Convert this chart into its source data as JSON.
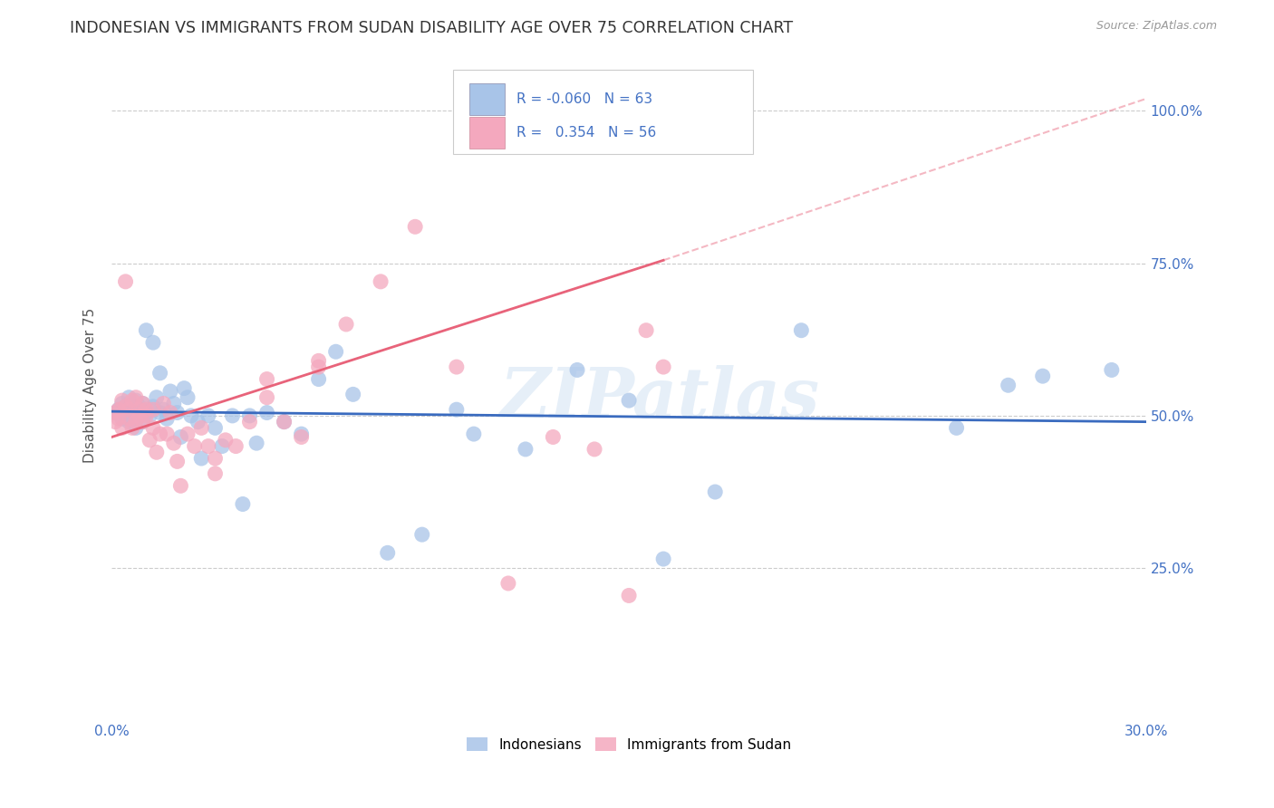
{
  "title": "INDONESIAN VS IMMIGRANTS FROM SUDAN DISABILITY AGE OVER 75 CORRELATION CHART",
  "source": "Source: ZipAtlas.com",
  "ylabel_label": "Disability Age Over 75",
  "x_min": 0.0,
  "x_max": 0.3,
  "y_min": 0.0,
  "y_max": 1.1,
  "x_ticks": [
    0.0,
    0.05,
    0.1,
    0.15,
    0.2,
    0.25,
    0.3
  ],
  "x_tick_labels": [
    "0.0%",
    "",
    "",
    "",
    "",
    "",
    "30.0%"
  ],
  "y_ticks": [
    0.0,
    0.25,
    0.5,
    0.75,
    1.0
  ],
  "y_tick_labels": [
    "",
    "25.0%",
    "50.0%",
    "75.0%",
    "100.0%"
  ],
  "r_indonesian": -0.06,
  "n_indonesian": 63,
  "r_sudan": 0.354,
  "n_sudan": 56,
  "color_indonesian": "#a8c4e8",
  "color_sudan": "#f4a8be",
  "line_color_indonesian": "#3a6bbf",
  "line_color_sudan": "#e8637a",
  "background_color": "#ffffff",
  "grid_color": "#cccccc",
  "watermark": "ZIPatlas",
  "indonesian_x": [
    0.001,
    0.002,
    0.003,
    0.003,
    0.004,
    0.004,
    0.005,
    0.005,
    0.006,
    0.006,
    0.007,
    0.007,
    0.008,
    0.008,
    0.009,
    0.009,
    0.01,
    0.01,
    0.011,
    0.011,
    0.012,
    0.012,
    0.013,
    0.014,
    0.014,
    0.015,
    0.016,
    0.017,
    0.018,
    0.019,
    0.02,
    0.021,
    0.022,
    0.023,
    0.025,
    0.026,
    0.028,
    0.03,
    0.032,
    0.035,
    0.038,
    0.04,
    0.042,
    0.045,
    0.05,
    0.055,
    0.06,
    0.065,
    0.07,
    0.08,
    0.09,
    0.1,
    0.105,
    0.12,
    0.135,
    0.15,
    0.16,
    0.175,
    0.2,
    0.245,
    0.26,
    0.27,
    0.29
  ],
  "indonesian_y": [
    0.505,
    0.51,
    0.52,
    0.495,
    0.515,
    0.5,
    0.53,
    0.49,
    0.51,
    0.495,
    0.525,
    0.48,
    0.515,
    0.505,
    0.52,
    0.49,
    0.64,
    0.505,
    0.5,
    0.51,
    0.515,
    0.62,
    0.53,
    0.505,
    0.57,
    0.51,
    0.495,
    0.54,
    0.52,
    0.505,
    0.465,
    0.545,
    0.53,
    0.5,
    0.49,
    0.43,
    0.5,
    0.48,
    0.45,
    0.5,
    0.355,
    0.5,
    0.455,
    0.505,
    0.49,
    0.47,
    0.56,
    0.605,
    0.535,
    0.275,
    0.305,
    0.51,
    0.47,
    0.445,
    0.575,
    0.525,
    0.265,
    0.375,
    0.64,
    0.48,
    0.55,
    0.565,
    0.575
  ],
  "sudan_x": [
    0.001,
    0.001,
    0.002,
    0.002,
    0.003,
    0.003,
    0.004,
    0.004,
    0.005,
    0.005,
    0.006,
    0.006,
    0.007,
    0.007,
    0.008,
    0.008,
    0.009,
    0.009,
    0.01,
    0.01,
    0.011,
    0.012,
    0.012,
    0.013,
    0.014,
    0.015,
    0.016,
    0.017,
    0.018,
    0.019,
    0.02,
    0.022,
    0.024,
    0.026,
    0.028,
    0.03,
    0.033,
    0.036,
    0.04,
    0.045,
    0.05,
    0.055,
    0.06,
    0.068,
    0.078,
    0.088,
    0.1,
    0.115,
    0.128,
    0.14,
    0.15,
    0.16,
    0.155,
    0.03,
    0.045,
    0.06
  ],
  "sudan_y": [
    0.505,
    0.49,
    0.51,
    0.495,
    0.525,
    0.48,
    0.515,
    0.72,
    0.51,
    0.495,
    0.525,
    0.48,
    0.53,
    0.49,
    0.51,
    0.5,
    0.52,
    0.49,
    0.51,
    0.5,
    0.46,
    0.51,
    0.48,
    0.44,
    0.47,
    0.52,
    0.47,
    0.505,
    0.455,
    0.425,
    0.385,
    0.47,
    0.45,
    0.48,
    0.45,
    0.43,
    0.46,
    0.45,
    0.49,
    0.53,
    0.49,
    0.465,
    0.59,
    0.65,
    0.72,
    0.81,
    0.58,
    0.225,
    0.465,
    0.445,
    0.205,
    0.58,
    0.64,
    0.405,
    0.56,
    0.58
  ]
}
